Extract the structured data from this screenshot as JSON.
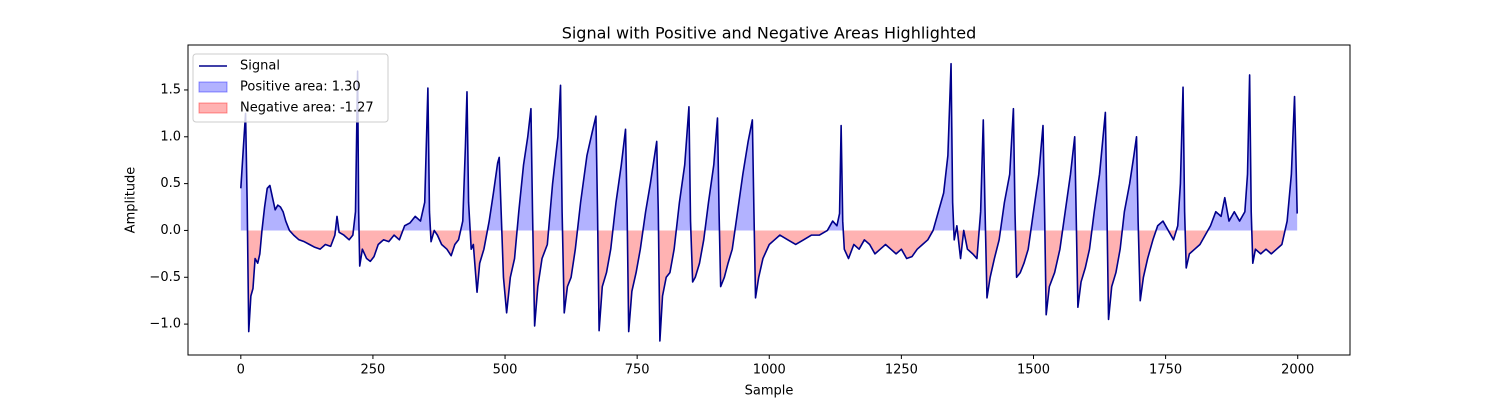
{
  "chart_data": {
    "type": "line",
    "title": "Signal with Positive and Negative Areas Highlighted",
    "xlabel": "Sample",
    "ylabel": "Amplitude",
    "xlim": [
      -99.95,
      2098.95
    ],
    "ylim": [
      -1.33,
      1.98
    ],
    "xticks": [
      0,
      250,
      500,
      750,
      1000,
      1250,
      1500,
      1750,
      2000
    ],
    "yticks": [
      {
        "value": -1.0,
        "label": "−1.0"
      },
      {
        "value": -0.5,
        "label": "−0.5"
      },
      {
        "value": 0.0,
        "label": "0.0"
      },
      {
        "value": 0.5,
        "label": "0.5"
      },
      {
        "value": 1.0,
        "label": "1.0"
      },
      {
        "value": 1.5,
        "label": "1.5"
      }
    ],
    "legend": "upper left",
    "x": [
      0,
      5,
      9,
      12,
      15,
      19,
      23,
      27,
      32,
      36,
      40,
      45,
      50,
      55,
      60,
      65,
      70,
      75,
      80,
      85,
      92,
      100,
      110,
      120,
      130,
      140,
      150,
      160,
      170,
      178,
      182,
      186,
      195,
      205,
      212,
      217,
      221,
      223,
      225,
      230,
      238,
      245,
      252,
      260,
      270,
      280,
      290,
      300,
      310,
      320,
      330,
      340,
      348,
      354,
      357,
      360,
      366,
      372,
      380,
      390,
      398,
      405,
      412,
      420,
      425,
      428,
      431,
      436,
      440,
      447,
      452,
      460,
      470,
      478,
      486,
      489,
      492,
      497,
      503,
      510,
      518,
      526,
      535,
      543,
      549,
      552,
      556,
      562,
      570,
      580,
      590,
      600,
      605,
      608,
      612,
      618,
      625,
      633,
      643,
      655,
      665,
      672,
      675,
      678,
      684,
      692,
      700,
      710,
      720,
      728,
      731,
      734,
      740,
      748,
      756,
      766,
      775,
      783,
      787,
      790,
      793,
      798,
      805,
      812,
      820,
      830,
      840,
      848,
      851,
      855,
      860,
      868,
      876,
      885,
      895,
      902,
      905,
      908,
      915,
      922,
      930,
      940,
      950,
      960,
      968,
      971,
      974,
      980,
      988,
      1000,
      1010,
      1020,
      1035,
      1050,
      1065,
      1080,
      1095,
      1110,
      1120,
      1128,
      1133,
      1136,
      1139,
      1142,
      1150,
      1160,
      1170,
      1180,
      1190,
      1200,
      1210,
      1220,
      1230,
      1240,
      1250,
      1260,
      1270,
      1280,
      1290,
      1300,
      1310,
      1320,
      1330,
      1338,
      1344,
      1347,
      1350,
      1355,
      1362,
      1368,
      1375,
      1385,
      1393,
      1400,
      1405,
      1408,
      1412,
      1418,
      1426,
      1435,
      1445,
      1455,
      1462,
      1465,
      1468,
      1475,
      1482,
      1490,
      1500,
      1510,
      1518,
      1521,
      1524,
      1530,
      1540,
      1550,
      1560,
      1570,
      1578,
      1581,
      1584,
      1590,
      1598,
      1606,
      1615,
      1625,
      1636,
      1639,
      1642,
      1648,
      1656,
      1664,
      1672,
      1682,
      1690,
      1695,
      1698,
      1702,
      1708,
      1716,
      1726,
      1735,
      1745,
      1755,
      1765,
      1773,
      1778,
      1783,
      1786,
      1789,
      1795,
      1805,
      1815,
      1825,
      1835,
      1845,
      1855,
      1862,
      1870,
      1880,
      1890,
      1900,
      1905,
      1909,
      1912,
      1915,
      1920,
      1930,
      1940,
      1950,
      1960,
      1970,
      1980,
      1988,
      1994,
      1999
    ],
    "series": [
      {
        "name": "Signal",
        "color": "#00008b",
        "values": [
          0.45,
          0.9,
          1.25,
          0.3,
          -1.08,
          -0.7,
          -0.62,
          -0.3,
          -0.35,
          -0.25,
          0.0,
          0.25,
          0.45,
          0.48,
          0.35,
          0.22,
          0.27,
          0.25,
          0.2,
          0.1,
          0.0,
          -0.05,
          -0.1,
          -0.12,
          -0.15,
          -0.18,
          -0.2,
          -0.15,
          -0.17,
          -0.05,
          0.15,
          -0.02,
          -0.05,
          -0.1,
          -0.05,
          0.2,
          1.7,
          0.2,
          -0.38,
          -0.2,
          -0.3,
          -0.33,
          -0.28,
          -0.15,
          -0.1,
          -0.12,
          -0.05,
          -0.1,
          0.05,
          0.08,
          0.15,
          0.1,
          0.3,
          1.52,
          0.2,
          -0.12,
          0.0,
          -0.05,
          -0.15,
          -0.2,
          -0.27,
          -0.15,
          -0.1,
          0.1,
          0.9,
          1.48,
          0.3,
          -0.2,
          -0.15,
          -0.66,
          -0.35,
          -0.2,
          0.1,
          0.4,
          0.72,
          0.78,
          0.3,
          -0.5,
          -0.88,
          -0.5,
          -0.3,
          0.2,
          0.7,
          1.0,
          1.3,
          0.2,
          -1.02,
          -0.6,
          -0.3,
          -0.15,
          0.5,
          1.0,
          1.55,
          0.2,
          -0.88,
          -0.6,
          -0.5,
          -0.2,
          0.3,
          0.8,
          1.05,
          1.22,
          0.2,
          -1.07,
          -0.6,
          -0.45,
          -0.2,
          0.3,
          0.7,
          1.08,
          0.2,
          -1.08,
          -0.65,
          -0.45,
          -0.2,
          0.2,
          0.5,
          0.8,
          0.95,
          0.2,
          -1.18,
          -0.7,
          -0.5,
          -0.45,
          -0.2,
          0.3,
          0.7,
          1.32,
          0.1,
          -0.55,
          -0.5,
          -0.35,
          -0.1,
          0.3,
          0.7,
          1.2,
          0.2,
          -0.6,
          -0.5,
          -0.35,
          -0.2,
          0.2,
          0.6,
          0.95,
          1.18,
          0.2,
          -0.72,
          -0.5,
          -0.3,
          -0.15,
          -0.1,
          -0.05,
          -0.1,
          -0.15,
          -0.1,
          -0.05,
          -0.05,
          0.0,
          0.1,
          0.05,
          0.18,
          1.12,
          0.1,
          -0.2,
          -0.3,
          -0.15,
          -0.2,
          -0.1,
          -0.15,
          -0.25,
          -0.2,
          -0.15,
          -0.2,
          -0.25,
          -0.2,
          -0.3,
          -0.28,
          -0.2,
          -0.15,
          -0.1,
          0.0,
          0.2,
          0.4,
          0.8,
          1.78,
          0.3,
          -0.1,
          0.05,
          -0.3,
          0.0,
          -0.2,
          -0.25,
          -0.3,
          0.2,
          1.18,
          0.3,
          -0.72,
          -0.5,
          -0.3,
          -0.1,
          0.3,
          0.6,
          1.3,
          0.2,
          -0.5,
          -0.45,
          -0.35,
          -0.2,
          0.2,
          0.6,
          1.12,
          0.2,
          -0.9,
          -0.6,
          -0.45,
          -0.2,
          0.2,
          0.6,
          1.0,
          0.1,
          -0.82,
          -0.55,
          -0.4,
          -0.2,
          0.2,
          0.6,
          1.26,
          0.2,
          -0.95,
          -0.6,
          -0.45,
          -0.2,
          0.2,
          0.5,
          0.8,
          1.0,
          0.1,
          -0.75,
          -0.5,
          -0.3,
          -0.1,
          0.05,
          0.1,
          0.0,
          -0.1,
          0.05,
          0.5,
          1.53,
          0.2,
          -0.4,
          -0.25,
          -0.2,
          -0.15,
          -0.05,
          0.05,
          0.2,
          0.15,
          0.35,
          0.1,
          0.2,
          0.1,
          0.2,
          0.6,
          1.66,
          0.2,
          -0.35,
          -0.2,
          -0.25,
          -0.2,
          -0.25,
          -0.2,
          -0.15,
          0.1,
          0.6,
          1.43,
          0.18
        ]
      }
    ],
    "fills": [
      {
        "name": "Positive area: 1.30",
        "color": "#0000ff",
        "opacity": 0.3,
        "side": "above"
      },
      {
        "name": "Negative area: -1.27",
        "color": "#ff0000",
        "opacity": 0.3,
        "side": "below"
      }
    ]
  }
}
